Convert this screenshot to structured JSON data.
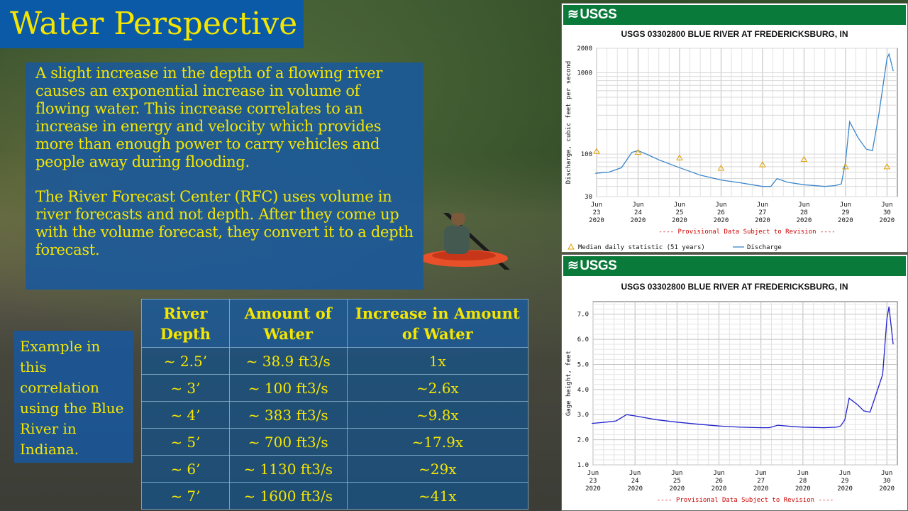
{
  "slide": {
    "title": "Water Perspective",
    "paragraph1": "A slight increase in the depth of a flowing river causes an exponential increase in volume of flowing water. This increase correlates to an increase in energy and velocity which provides more than enough power to carry vehicles and people away during flooding.",
    "paragraph2": "The River Forecast Center (RFC) uses volume in river forecasts and not depth. After they come up with the volume forecast, they convert it to a depth forecast.",
    "example_note": "Example in this correlation using the Blue River in Indiana."
  },
  "table": {
    "headers": [
      "River Depth",
      "Amount of Water",
      "Increase in Amount of Water"
    ],
    "rows": [
      [
        "~ 2.5’",
        "~ 38.9 ft3/s",
        "1x"
      ],
      [
        "~ 3’",
        "~ 100 ft3/s",
        "~2.6x"
      ],
      [
        "~ 4’",
        "~ 383 ft3/s",
        "~9.8x"
      ],
      [
        "~ 5’",
        "~ 700 ft3/s",
        "~17.9x"
      ],
      [
        "~ 6’",
        "~ 1130 ft3/s",
        "~29x"
      ],
      [
        "~ 7’",
        "~ 1600 ft3/s",
        "~41x"
      ]
    ]
  },
  "colors": {
    "accent_yellow": "#f5e600",
    "title_blue": "#0b5aa8",
    "usgs_green": "#0a7a3a",
    "discharge_line": "#3a86c8",
    "gage_line": "#2222cc",
    "median_marker": "#e0a000",
    "provisional_red": "#cc0000"
  },
  "chart_data": [
    {
      "type": "line",
      "brand": "USGS",
      "title": "USGS 03302800 BLUE RIVER AT FREDERICKSBURG, IN",
      "ylabel": "Discharge, cubic feet per second",
      "yscale": "log",
      "ylim": [
        30,
        2000
      ],
      "yticks": [
        30,
        100,
        1000,
        2000
      ],
      "xlim": [
        23,
        30.25
      ],
      "x_tick_labels": [
        [
          "Jun",
          "23",
          "2020"
        ],
        [
          "Jun",
          "24",
          "2020"
        ],
        [
          "Jun",
          "25",
          "2020"
        ],
        [
          "Jun",
          "26",
          "2020"
        ],
        [
          "Jun",
          "27",
          "2020"
        ],
        [
          "Jun",
          "28",
          "2020"
        ],
        [
          "Jun",
          "29",
          "2020"
        ],
        [
          "Jun",
          "30",
          "2020"
        ]
      ],
      "note": "---- Provisional Data Subject to Revision ----",
      "legend": [
        "Median daily statistic (51 years)",
        "Discharge"
      ],
      "legend_position": "bottom",
      "grid": true,
      "series": [
        {
          "name": "Discharge",
          "x": [
            22.97,
            23.3,
            23.6,
            23.85,
            24.0,
            24.2,
            24.5,
            25.0,
            25.5,
            26.0,
            26.5,
            27.0,
            27.2,
            27.35,
            27.6,
            28.0,
            28.5,
            28.75,
            28.9,
            29.0,
            29.1,
            29.3,
            29.5,
            29.65,
            29.8,
            30.0,
            30.05,
            30.15
          ],
          "y": [
            58,
            60,
            68,
            105,
            110,
            100,
            85,
            68,
            55,
            48,
            44,
            40,
            40,
            50,
            45,
            42,
            40,
            41,
            43,
            80,
            250,
            160,
            115,
            110,
            300,
            1500,
            1700,
            1050
          ]
        },
        {
          "name": "Median daily statistic (51 years)",
          "x": [
            23.0,
            24.0,
            25.0,
            26.0,
            27.0,
            28.0,
            29.0,
            30.0
          ],
          "y": [
            108,
            105,
            90,
            67,
            74,
            86,
            70,
            70
          ]
        }
      ]
    },
    {
      "type": "line",
      "brand": "USGS",
      "title": "USGS 03302800 BLUE RIVER AT FREDERICKSBURG, IN",
      "ylabel": "Gage height, feet",
      "ylim": [
        1.0,
        7.5
      ],
      "yticks": [
        1.0,
        2.0,
        3.0,
        4.0,
        5.0,
        6.0,
        7.0
      ],
      "xlim": [
        23,
        30.25
      ],
      "x_tick_labels": [
        [
          "Jun",
          "23",
          "2020"
        ],
        [
          "Jun",
          "24",
          "2020"
        ],
        [
          "Jun",
          "25",
          "2020"
        ],
        [
          "Jun",
          "26",
          "2020"
        ],
        [
          "Jun",
          "27",
          "2020"
        ],
        [
          "Jun",
          "28",
          "2020"
        ],
        [
          "Jun",
          "29",
          "2020"
        ],
        [
          "Jun",
          "30",
          "2020"
        ]
      ],
      "note": "---- Provisional Data Subject to Revision ----",
      "grid": true,
      "series": [
        {
          "name": "Gage height",
          "x": [
            22.97,
            23.3,
            23.55,
            23.8,
            24.0,
            24.5,
            25.0,
            25.5,
            26.0,
            26.5,
            27.0,
            27.2,
            27.4,
            27.8,
            28.0,
            28.5,
            28.8,
            28.9,
            29.0,
            29.1,
            29.3,
            29.45,
            29.6,
            29.7,
            29.9,
            30.0,
            30.05,
            30.15
          ],
          "y": [
            2.65,
            2.7,
            2.75,
            3.0,
            2.95,
            2.8,
            2.7,
            2.62,
            2.55,
            2.5,
            2.48,
            2.48,
            2.58,
            2.52,
            2.5,
            2.48,
            2.5,
            2.55,
            2.8,
            3.65,
            3.4,
            3.15,
            3.1,
            3.6,
            4.6,
            6.8,
            7.3,
            5.8
          ]
        }
      ]
    }
  ]
}
